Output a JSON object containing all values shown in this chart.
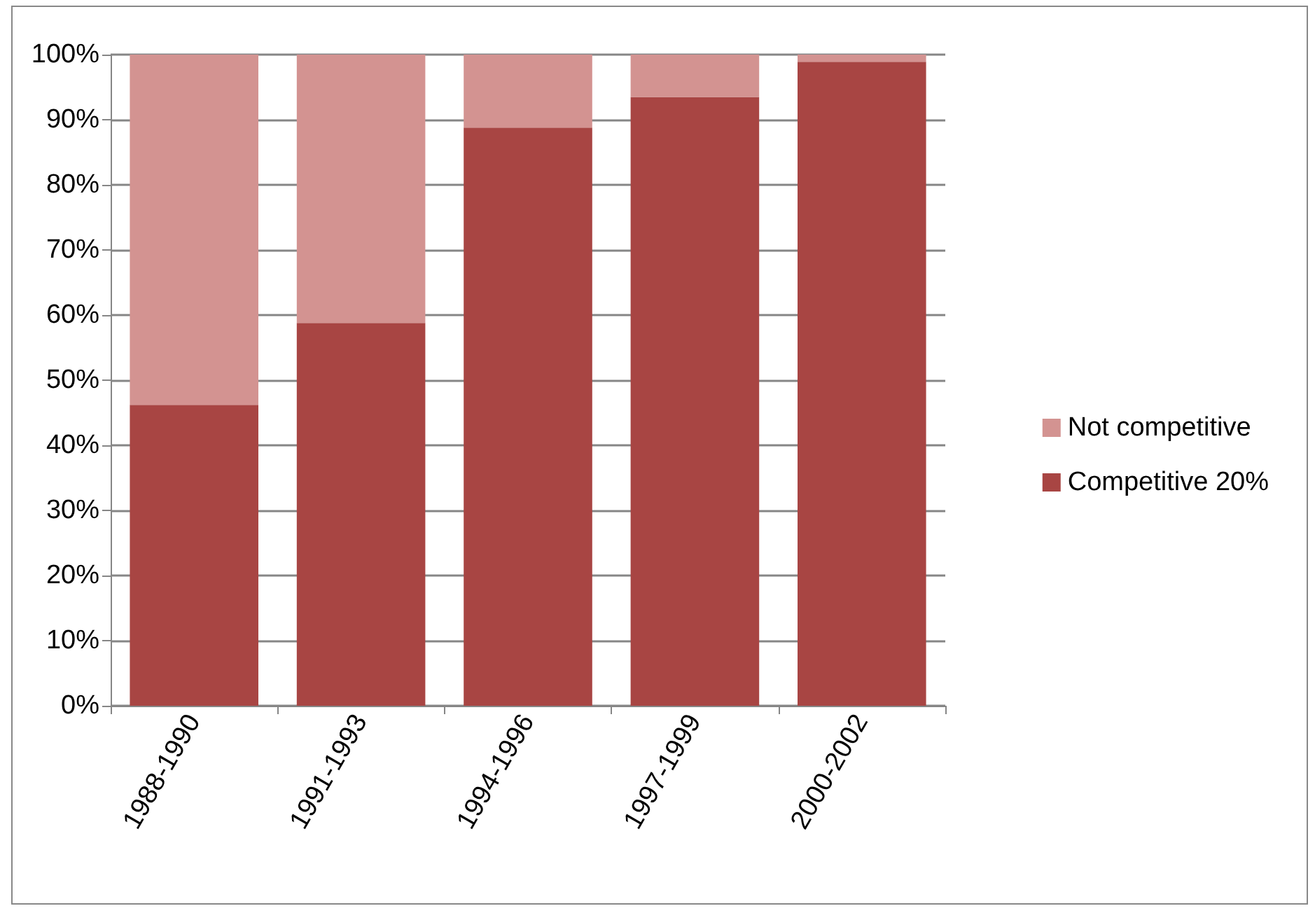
{
  "chart_data": {
    "type": "bar",
    "stacked": true,
    "categories": [
      "1988-1990",
      "1991-1993",
      "1994-1996",
      "1997-1999",
      "2000-2002"
    ],
    "series": [
      {
        "name": "Competitive 20%",
        "color": "#a84543",
        "values": [
          46.2,
          58.8,
          88.8,
          93.5,
          98.9
        ]
      },
      {
        "name": "Not competitive",
        "color": "#d39391",
        "values": [
          53.8,
          41.2,
          11.2,
          6.5,
          1.1
        ]
      }
    ],
    "ylim": [
      0,
      100
    ],
    "yticks": [
      {
        "value": 0,
        "label": "0%"
      },
      {
        "value": 10,
        "label": "10%"
      },
      {
        "value": 20,
        "label": "20%"
      },
      {
        "value": 30,
        "label": "30%"
      },
      {
        "value": 40,
        "label": "40%"
      },
      {
        "value": 50,
        "label": "50%"
      },
      {
        "value": 60,
        "label": "60%"
      },
      {
        "value": 70,
        "label": "70%"
      },
      {
        "value": 80,
        "label": "80%"
      },
      {
        "value": 90,
        "label": "90%"
      },
      {
        "value": 100,
        "label": "100%"
      }
    ],
    "grid": "y",
    "legend": "right"
  }
}
